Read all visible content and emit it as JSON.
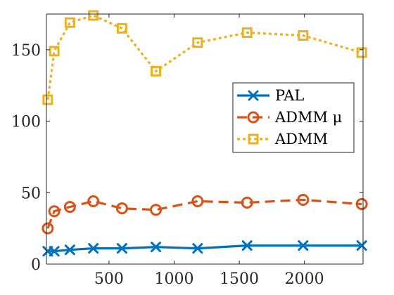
{
  "chart_data": {
    "type": "line",
    "title": "",
    "xlabel": "",
    "ylabel": "",
    "xlim": [
      20,
      2450
    ],
    "ylim": [
      0,
      175
    ],
    "x_ticks": [
      500,
      1000,
      1500,
      2000
    ],
    "y_ticks": [
      0,
      50,
      100,
      150
    ],
    "grid": false,
    "legend_position": "middle-right",
    "series": [
      {
        "name": "PAL",
        "color": "#0072BD",
        "line_style": "solid",
        "marker": "x",
        "x": [
          30,
          80,
          200,
          380,
          600,
          860,
          1180,
          1560,
          1990,
          2440
        ],
        "y": [
          9,
          9,
          10,
          11,
          11,
          12,
          11,
          13,
          13,
          13
        ]
      },
      {
        "name": "ADMM μ",
        "color": "#D95319",
        "line_style": "dashed",
        "marker": "circle",
        "x": [
          30,
          80,
          200,
          380,
          600,
          860,
          1180,
          1560,
          1990,
          2440
        ],
        "y": [
          25,
          37,
          40,
          44,
          39,
          38,
          44,
          43,
          45,
          42
        ]
      },
      {
        "name": "ADMM",
        "color": "#EDB120",
        "line_style": "dotted",
        "marker": "square",
        "x": [
          30,
          80,
          200,
          380,
          600,
          860,
          1180,
          1560,
          1990,
          2440
        ],
        "y": [
          115,
          149,
          169,
          174,
          165,
          135,
          155,
          162,
          160,
          148
        ]
      }
    ]
  }
}
